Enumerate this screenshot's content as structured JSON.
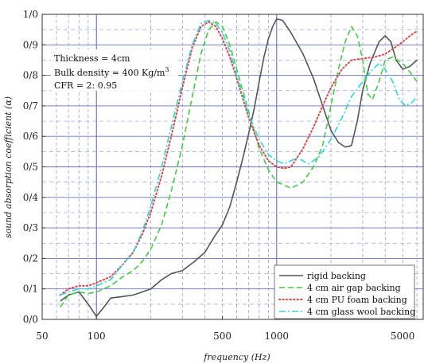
{
  "chart_data": {
    "type": "line",
    "xscale": "log",
    "xlim": [
      50,
      6500
    ],
    "ylim": [
      0,
      1
    ],
    "xlabel": "frequency (Hz)",
    "ylabel": "sound absorption coefficient (α)",
    "grid": true,
    "legend_position": "bottom-right",
    "x_ticks": [
      {
        "value": 50,
        "label": "50"
      },
      {
        "value": 100,
        "label": "100"
      },
      {
        "value": 500,
        "label": "500"
      },
      {
        "value": 1000,
        "label": "1000"
      },
      {
        "value": 5000,
        "label": "5000"
      }
    ],
    "y_ticks": [
      {
        "value": 0,
        "label": "0/0"
      },
      {
        "value": 0.1,
        "label": "0/1"
      },
      {
        "value": 0.2,
        "label": "0/2"
      },
      {
        "value": 0.3,
        "label": "0/3"
      },
      {
        "value": 0.4,
        "label": "0/4"
      },
      {
        "value": 0.5,
        "label": "0/5"
      },
      {
        "value": 0.6,
        "label": "0/6"
      },
      {
        "value": 0.7,
        "label": "0/7"
      },
      {
        "value": 0.8,
        "label": "0/8"
      },
      {
        "value": 0.9,
        "label": "0/9"
      },
      {
        "value": 1.0,
        "label": "1/0"
      }
    ],
    "annotations": [
      {
        "text": "Thickness = 4cm"
      },
      {
        "text": "Bulk density = 400 Kg/m",
        "sup": "3"
      },
      {
        "text": "CFR = 2: 0.95"
      }
    ],
    "series": [
      {
        "name": "rigid backing",
        "color": "#555555",
        "dash": "solid",
        "points": [
          [
            63,
            0.06
          ],
          [
            70,
            0.08
          ],
          [
            80,
            0.09
          ],
          [
            90,
            0.05
          ],
          [
            100,
            0.01
          ],
          [
            110,
            0.04
          ],
          [
            120,
            0.07
          ],
          [
            140,
            0.075
          ],
          [
            160,
            0.08
          ],
          [
            180,
            0.09
          ],
          [
            200,
            0.1
          ],
          [
            230,
            0.13
          ],
          [
            260,
            0.15
          ],
          [
            300,
            0.16
          ],
          [
            350,
            0.19
          ],
          [
            400,
            0.22
          ],
          [
            450,
            0.27
          ],
          [
            500,
            0.31
          ],
          [
            550,
            0.37
          ],
          [
            600,
            0.45
          ],
          [
            650,
            0.53
          ],
          [
            700,
            0.61
          ],
          [
            750,
            0.69
          ],
          [
            800,
            0.78
          ],
          [
            850,
            0.86
          ],
          [
            900,
            0.92
          ],
          [
            950,
            0.96
          ],
          [
            1000,
            0.985
          ],
          [
            1080,
            0.98
          ],
          [
            1200,
            0.94
          ],
          [
            1400,
            0.87
          ],
          [
            1600,
            0.79
          ],
          [
            1800,
            0.7
          ],
          [
            2000,
            0.62
          ],
          [
            2200,
            0.58
          ],
          [
            2400,
            0.565
          ],
          [
            2600,
            0.57
          ],
          [
            2800,
            0.65
          ],
          [
            3000,
            0.75
          ],
          [
            3300,
            0.84
          ],
          [
            3700,
            0.91
          ],
          [
            4000,
            0.93
          ],
          [
            4300,
            0.91
          ],
          [
            4600,
            0.85
          ],
          [
            5000,
            0.82
          ],
          [
            5500,
            0.83
          ],
          [
            6000,
            0.85
          ]
        ]
      },
      {
        "name": "4 cm air gap backing",
        "color": "#3fce3f",
        "dash": "dashed",
        "points": [
          [
            63,
            0.04
          ],
          [
            70,
            0.08
          ],
          [
            80,
            0.09
          ],
          [
            90,
            0.085
          ],
          [
            100,
            0.09
          ],
          [
            120,
            0.11
          ],
          [
            140,
            0.14
          ],
          [
            160,
            0.16
          ],
          [
            180,
            0.19
          ],
          [
            200,
            0.23
          ],
          [
            230,
            0.31
          ],
          [
            260,
            0.42
          ],
          [
            300,
            0.57
          ],
          [
            340,
            0.73
          ],
          [
            380,
            0.87
          ],
          [
            420,
            0.95
          ],
          [
            460,
            0.975
          ],
          [
            500,
            0.96
          ],
          [
            550,
            0.9
          ],
          [
            600,
            0.82
          ],
          [
            700,
            0.68
          ],
          [
            800,
            0.56
          ],
          [
            900,
            0.49
          ],
          [
            1000,
            0.45
          ],
          [
            1100,
            0.44
          ],
          [
            1200,
            0.43
          ],
          [
            1400,
            0.45
          ],
          [
            1600,
            0.5
          ],
          [
            1800,
            0.57
          ],
          [
            2000,
            0.7
          ],
          [
            2200,
            0.82
          ],
          [
            2400,
            0.91
          ],
          [
            2600,
            0.96
          ],
          [
            2800,
            0.93
          ],
          [
            3000,
            0.85
          ],
          [
            3200,
            0.74
          ],
          [
            3400,
            0.72
          ],
          [
            3700,
            0.78
          ],
          [
            4000,
            0.85
          ],
          [
            4400,
            0.86
          ],
          [
            5000,
            0.84
          ],
          [
            5500,
            0.81
          ],
          [
            6000,
            0.78
          ]
        ]
      },
      {
        "name": "4 cm PU foam backing",
        "color": "#d94a4a",
        "dash": "dotted",
        "points": [
          [
            63,
            0.08
          ],
          [
            70,
            0.1
          ],
          [
            80,
            0.11
          ],
          [
            90,
            0.11
          ],
          [
            100,
            0.12
          ],
          [
            120,
            0.14
          ],
          [
            140,
            0.18
          ],
          [
            160,
            0.22
          ],
          [
            180,
            0.28
          ],
          [
            200,
            0.35
          ],
          [
            230,
            0.47
          ],
          [
            260,
            0.6
          ],
          [
            300,
            0.76
          ],
          [
            340,
            0.89
          ],
          [
            380,
            0.96
          ],
          [
            420,
            0.975
          ],
          [
            460,
            0.96
          ],
          [
            500,
            0.92
          ],
          [
            550,
            0.86
          ],
          [
            600,
            0.79
          ],
          [
            700,
            0.66
          ],
          [
            800,
            0.57
          ],
          [
            900,
            0.52
          ],
          [
            1000,
            0.5
          ],
          [
            1100,
            0.495
          ],
          [
            1200,
            0.5
          ],
          [
            1400,
            0.56
          ],
          [
            1600,
            0.63
          ],
          [
            1800,
            0.7
          ],
          [
            2000,
            0.76
          ],
          [
            2300,
            0.82
          ],
          [
            2600,
            0.85
          ],
          [
            3000,
            0.855
          ],
          [
            3500,
            0.86
          ],
          [
            4000,
            0.87
          ],
          [
            4500,
            0.89
          ],
          [
            5000,
            0.91
          ],
          [
            5500,
            0.93
          ],
          [
            6000,
            0.945
          ]
        ]
      },
      {
        "name": "4 cm glass wool backing",
        "color": "#2fd6d6",
        "dash": "dashdot",
        "points": [
          [
            63,
            0.08
          ],
          [
            70,
            0.09
          ],
          [
            80,
            0.1
          ],
          [
            90,
            0.1
          ],
          [
            100,
            0.11
          ],
          [
            120,
            0.13
          ],
          [
            140,
            0.18
          ],
          [
            160,
            0.22
          ],
          [
            180,
            0.29
          ],
          [
            200,
            0.37
          ],
          [
            230,
            0.5
          ],
          [
            260,
            0.63
          ],
          [
            300,
            0.78
          ],
          [
            340,
            0.9
          ],
          [
            380,
            0.97
          ],
          [
            420,
            0.98
          ],
          [
            460,
            0.97
          ],
          [
            500,
            0.94
          ],
          [
            550,
            0.88
          ],
          [
            600,
            0.8
          ],
          [
            700,
            0.67
          ],
          [
            800,
            0.59
          ],
          [
            900,
            0.54
          ],
          [
            1000,
            0.52
          ],
          [
            1100,
            0.51
          ],
          [
            1200,
            0.52
          ],
          [
            1300,
            0.53
          ],
          [
            1500,
            0.51
          ],
          [
            1700,
            0.53
          ],
          [
            2000,
            0.59
          ],
          [
            2300,
            0.66
          ],
          [
            2600,
            0.73
          ],
          [
            3000,
            0.78
          ],
          [
            3300,
            0.81
          ],
          [
            3700,
            0.84
          ],
          [
            4000,
            0.82
          ],
          [
            4400,
            0.78
          ],
          [
            4800,
            0.72
          ],
          [
            5200,
            0.7
          ],
          [
            5600,
            0.71
          ],
          [
            6000,
            0.73
          ]
        ]
      }
    ]
  }
}
